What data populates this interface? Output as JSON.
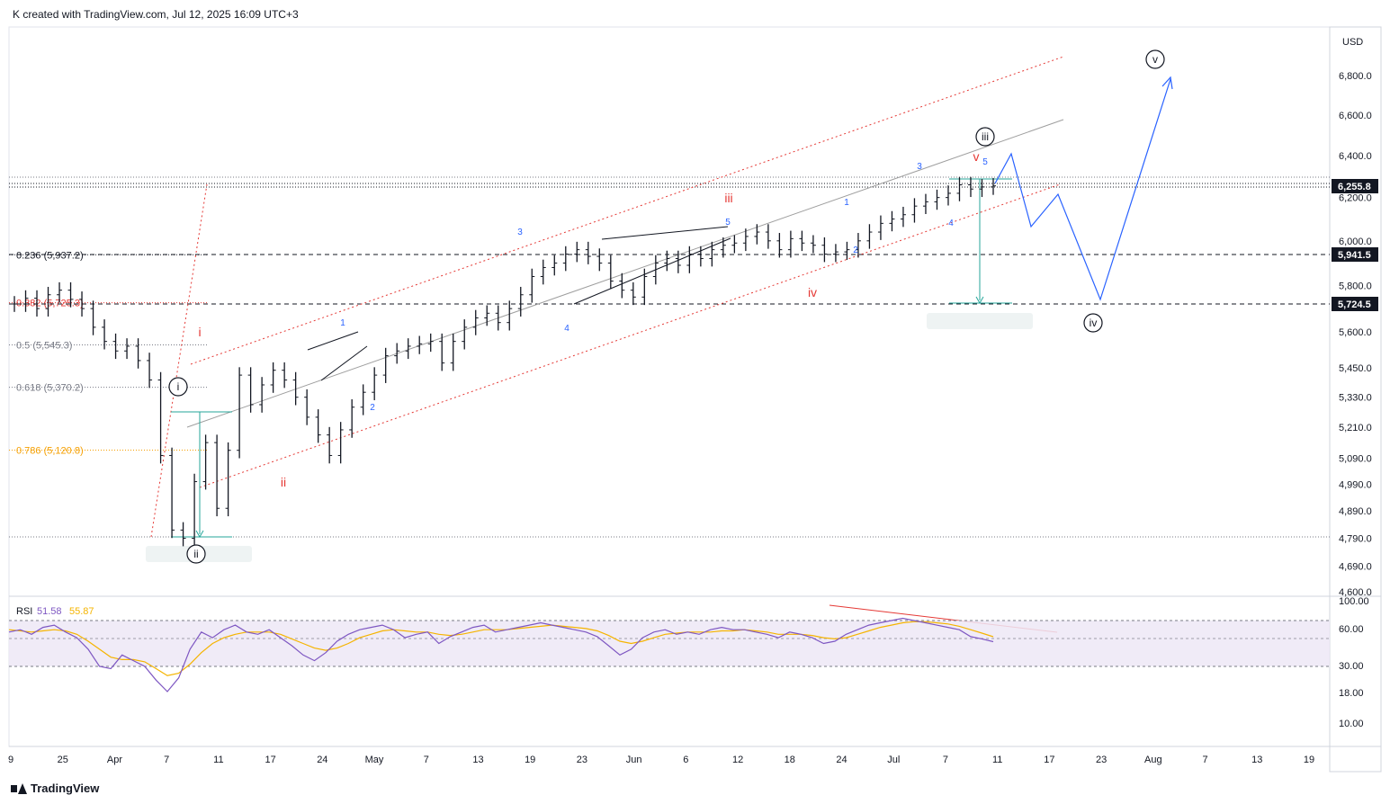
{
  "header": {
    "text": "K created with TradingView.com, Jul 12, 2025 16:09 UTC+3"
  },
  "footer": {
    "brand": "TradingView"
  },
  "currency": "USD",
  "colors": {
    "wave_red": "#e53935",
    "wave_blue": "#2962ff",
    "channel_red": "#e53935",
    "channel_gray": "#9e9e9e",
    "projection_blue": "#2962ff",
    "rsi_line": "#7e57c2",
    "rsi_ma": "#f5b400",
    "rsi_band": "#ede7f6",
    "measure_teal": "#26a69a",
    "fib_orange": "#f59f00"
  },
  "chart_data": [
    {
      "type": "line",
      "title": "",
      "ylim": [
        4560,
        7100
      ],
      "y_scale": "log",
      "x_ticks": [
        "9",
        "25",
        "Apr",
        "7",
        "11",
        "17",
        "24",
        "May",
        "7",
        "13",
        "19",
        "23",
        "Jun",
        "6",
        "12",
        "18",
        "24",
        "Jul",
        "7",
        "11",
        "17",
        "23",
        "Aug",
        "7",
        "13",
        "19"
      ],
      "y_ticks": [
        "6,800.0",
        "6,600.0",
        "6,400.0",
        "6,200.0",
        "6,000.0",
        "5,800.0",
        "5,600.0",
        "5,450.0",
        "5,330.0",
        "5,210.0",
        "5,090.0",
        "4,990.0",
        "4,890.0",
        "4,790.0",
        "4,690.0",
        "4,600.0"
      ],
      "price_labels": [
        {
          "text": "6,255.8",
          "value": 6255.8,
          "style": "dark"
        },
        {
          "text": "5,941.5",
          "value": 5941.5,
          "style": "dark"
        },
        {
          "text": "5,724.5",
          "value": 5724.5,
          "style": "dark"
        }
      ],
      "fib_levels": [
        {
          "label": "0.236 (5,937.2)",
          "value": 5937.2,
          "color": "#131722"
        },
        {
          "label": "0.382 (5,725.3)",
          "value": 5725.3,
          "color": "#e53935"
        },
        {
          "label": "0.5 (5,545.3)",
          "value": 5545.3,
          "color": "#787b86"
        },
        {
          "label": "0.618 (5,370.2)",
          "value": 5370.2,
          "color": "#787b86"
        },
        {
          "label": "0.786 (5,120.8)",
          "value": 5120.8,
          "color": "#f59f00"
        }
      ],
      "wave_labels": [
        {
          "text": "i",
          "style": "red"
        },
        {
          "text": "ii",
          "style": "red"
        },
        {
          "text": "iii",
          "style": "red"
        },
        {
          "text": "iv",
          "style": "red"
        },
        {
          "text": "v",
          "style": "red"
        },
        {
          "text": "i",
          "style": "circle"
        },
        {
          "text": "ii",
          "style": "circle"
        },
        {
          "text": "iii",
          "style": "circle"
        },
        {
          "text": "iv",
          "style": "circle"
        },
        {
          "text": "v",
          "style": "circle"
        },
        {
          "text": "1",
          "style": "blue"
        },
        {
          "text": "2",
          "style": "blue"
        },
        {
          "text": "3",
          "style": "blue"
        },
        {
          "text": "4",
          "style": "blue"
        },
        {
          "text": "5",
          "style": "blue"
        },
        {
          "text": "1",
          "style": "blue"
        },
        {
          "text": "2",
          "style": "blue"
        },
        {
          "text": "3",
          "style": "blue"
        },
        {
          "text": "4",
          "style": "blue"
        },
        {
          "text": "5",
          "style": "blue"
        }
      ],
      "price_series": [
        5720,
        5745,
        5700,
        5760,
        5780,
        5740,
        5700,
        5620,
        5560,
        5520,
        5540,
        5480,
        5400,
        5100,
        4820,
        4790,
        5000,
        5150,
        4900,
        5120,
        5420,
        5300,
        5380,
        5440,
        5400,
        5330,
        5250,
        5180,
        5100,
        5200,
        5290,
        5350,
        5420,
        5500,
        5520,
        5540,
        5550,
        5560,
        5470,
        5560,
        5620,
        5660,
        5680,
        5640,
        5700,
        5760,
        5840,
        5880,
        5900,
        5940,
        5960,
        5930,
        5900,
        5820,
        5780,
        5750,
        5840,
        5900,
        5920,
        5890,
        5940,
        5920,
        5960,
        5980,
        5990,
        6020,
        6040,
        6000,
        5960,
        6010,
        5990,
        5980,
        5940,
        5950,
        5960,
        6000,
        6040,
        6080,
        6100,
        6120,
        6160,
        6180,
        6200,
        6220,
        6260,
        6240,
        6250,
        6255
      ]
    },
    {
      "type": "line",
      "title": "",
      "indicator": "RSI",
      "ylim": [
        0,
        100
      ],
      "legend": [
        {
          "text": "RSI"
        },
        {
          "text": "51.58",
          "color": "#7e57c2"
        },
        {
          "text": "55.87",
          "color": "#f5b400"
        }
      ],
      "y_ticks": [
        "100.00",
        "60.00",
        "30.00",
        "18.00",
        "10.00"
      ],
      "band": [
        30,
        70
      ],
      "series": [
        {
          "name": "RSI",
          "values": [
            60,
            62,
            58,
            64,
            66,
            60,
            55,
            45,
            30,
            28,
            40,
            35,
            30,
            18,
            8,
            20,
            45,
            60,
            55,
            62,
            66,
            60,
            58,
            62,
            55,
            48,
            40,
            35,
            42,
            52,
            58,
            62,
            64,
            66,
            62,
            55,
            58,
            60,
            50,
            56,
            60,
            64,
            66,
            60,
            62,
            64,
            66,
            68,
            66,
            64,
            62,
            60,
            56,
            48,
            40,
            45,
            55,
            60,
            62,
            58,
            60,
            58,
            62,
            64,
            62,
            62,
            60,
            58,
            55,
            60,
            58,
            55,
            50,
            52,
            58,
            62,
            66,
            68,
            70,
            72,
            70,
            68,
            66,
            64,
            62,
            56,
            54,
            51.58
          ]
        },
        {
          "name": "RSI MA",
          "values": [
            62,
            61,
            60,
            61,
            62,
            61,
            58,
            52,
            45,
            38,
            36,
            36,
            34,
            28,
            22,
            24,
            32,
            42,
            50,
            55,
            58,
            60,
            60,
            60,
            58,
            54,
            50,
            46,
            44,
            46,
            50,
            55,
            58,
            61,
            62,
            61,
            60,
            60,
            58,
            57,
            58,
            60,
            62,
            62,
            62,
            63,
            64,
            65,
            66,
            65,
            64,
            63,
            61,
            57,
            52,
            50,
            52,
            55,
            58,
            59,
            60,
            60,
            60,
            61,
            61,
            62,
            61,
            60,
            58,
            58,
            58,
            57,
            55,
            54,
            55,
            58,
            61,
            64,
            66,
            68,
            69,
            69,
            68,
            67,
            65,
            62,
            59,
            55.87
          ]
        }
      ]
    }
  ]
}
